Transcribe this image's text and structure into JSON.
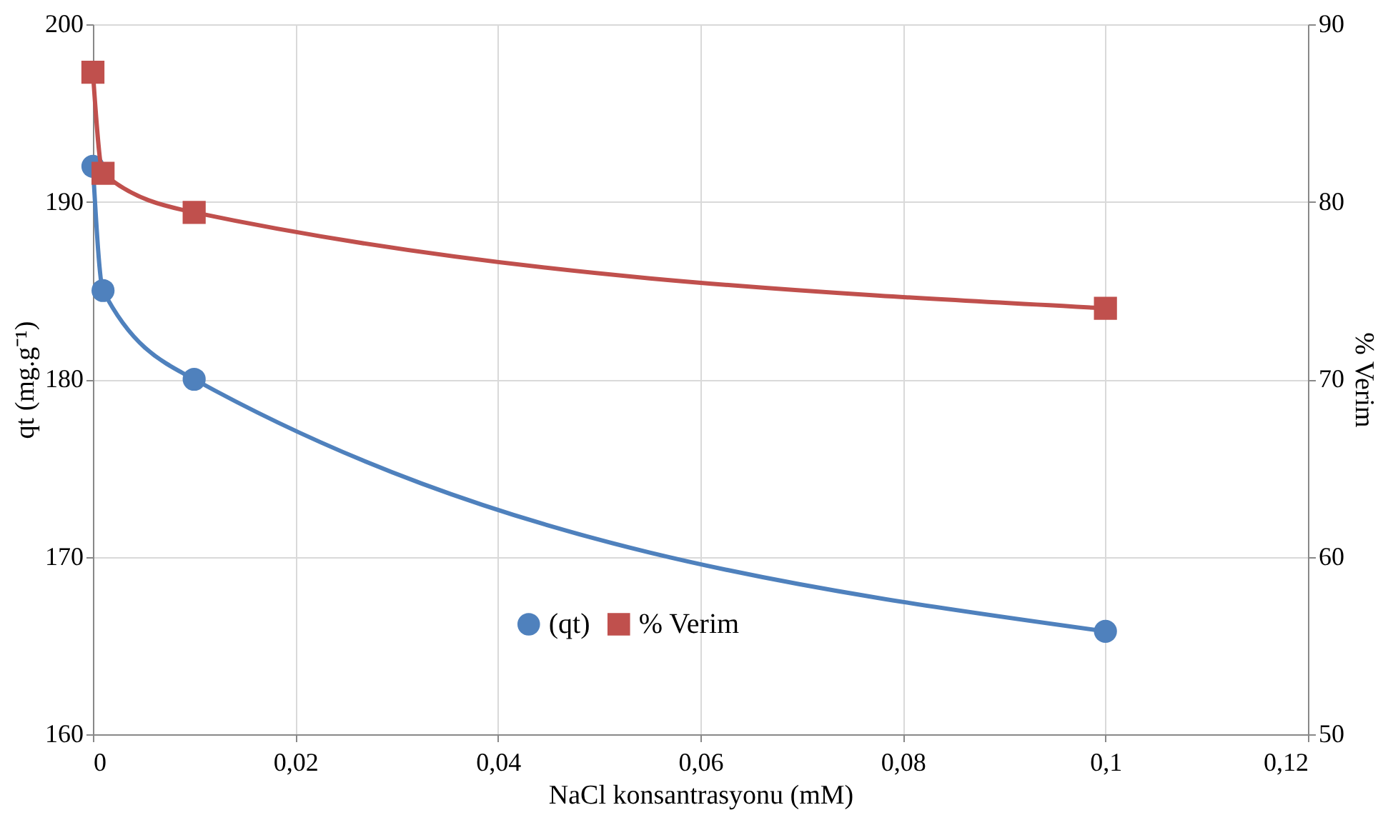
{
  "chart_data": {
    "type": "line",
    "xlabel": "NaCl konsantrasyonu (mM)",
    "ylabel": "qt (mg.g⁻¹)",
    "y2label": "% Verim",
    "x": [
      0,
      0.001,
      0.01,
      0.1
    ],
    "series": [
      {
        "name": "(qt)",
        "color": "#4f81bd",
        "values": [
          192,
          185,
          180,
          165.8
        ],
        "marker": "circle",
        "axis": "y"
      },
      {
        "name": "% Verim",
        "color": "#c0504d",
        "values": [
          87.3,
          81.6,
          79.4,
          74
        ],
        "marker": "square",
        "axis": "y2"
      }
    ],
    "xlim": [
      0,
      0.12
    ],
    "xticks": [
      0,
      {
        "value": 0.02,
        "label": "0,02"
      },
      {
        "value": 0.04,
        "label": "0,04"
      },
      {
        "value": 0.06,
        "label": "0,06"
      },
      {
        "value": 0.08,
        "label": "0,08"
      },
      {
        "value": 0.1,
        "label": "0,1"
      },
      {
        "value": 0.12,
        "label": "0,12"
      }
    ],
    "ylim": [
      160,
      200
    ],
    "yticks": [
      160,
      170,
      180,
      190,
      200
    ],
    "y2lim": [
      50,
      90
    ],
    "y2ticks": [
      50,
      60,
      70,
      80,
      90
    ],
    "grid": true,
    "legend": "bottom"
  }
}
